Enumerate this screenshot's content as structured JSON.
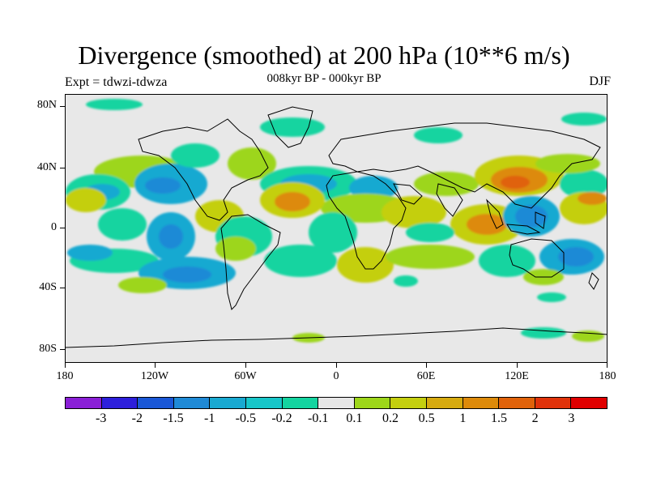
{
  "header": {
    "title": "Divergence (smoothed) at 200 hPa (10**6 m/s)",
    "subtitle": "008kyr BP - 000kyr BP",
    "experiment": "Expt = tdwzi-tdwza",
    "season": "DJF"
  },
  "map": {
    "lat_labels": [
      "80N",
      "40N",
      "0",
      "40S",
      "80S"
    ],
    "lon_labels": [
      "180",
      "120W",
      "60W",
      "0",
      "60E",
      "120E",
      "180"
    ],
    "background_color": "#e8e8e8",
    "coastline_color": "#000000"
  },
  "colorbar": {
    "colors": [
      "#8a1fd6",
      "#2d1fdb",
      "#1a57d6",
      "#1f8ad6",
      "#19a9d1",
      "#17c6c9",
      "#14d4a0",
      "#e6e6e6",
      "#9dd61a",
      "#c4cf0f",
      "#d6aa0f",
      "#dd8a0a",
      "#e0620a",
      "#e0320a",
      "#e00000"
    ],
    "labels": [
      "-3",
      "-2",
      "-1.5",
      "-1",
      "-0.5",
      "-0.2",
      "-0.1",
      "0.1",
      "0.2",
      "0.5",
      "1",
      "1.5",
      "2",
      "3"
    ]
  }
}
